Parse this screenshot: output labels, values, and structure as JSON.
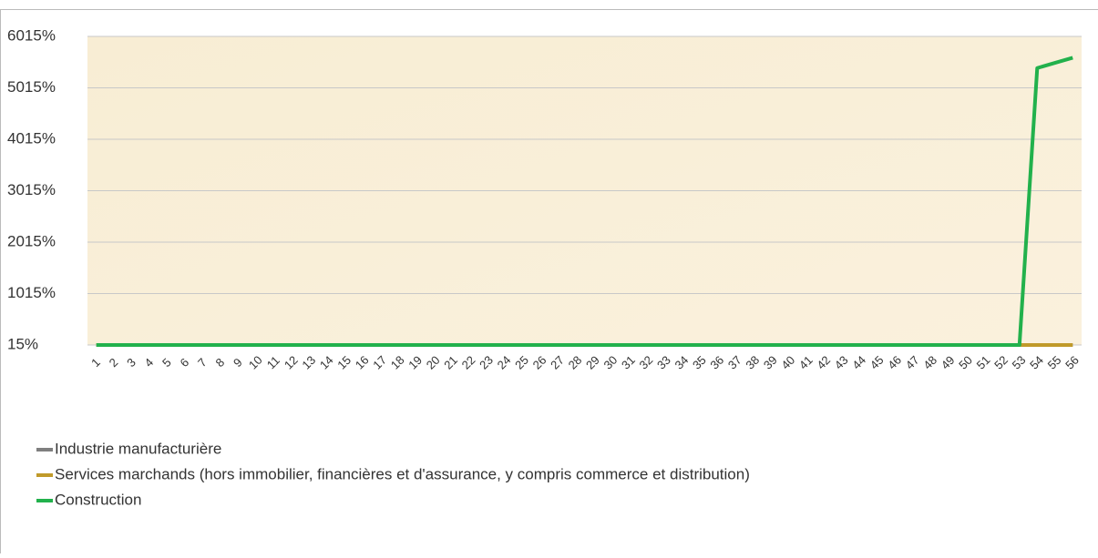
{
  "chart_data": {
    "type": "line",
    "categories": [
      "1",
      "2",
      "3",
      "4",
      "5",
      "6",
      "7",
      "8",
      "9",
      "10",
      "11",
      "12",
      "13",
      "14",
      "15",
      "16",
      "17",
      "18",
      "19",
      "20",
      "21",
      "22",
      "23",
      "24",
      "25",
      "26",
      "27",
      "28",
      "29",
      "30",
      "31",
      "32",
      "33",
      "34",
      "35",
      "36",
      "37",
      "38",
      "39",
      "40",
      "41",
      "42",
      "43",
      "44",
      "45",
      "46",
      "47",
      "48",
      "49",
      "50",
      "51",
      "52",
      "53",
      "54",
      "55",
      "56"
    ],
    "series": [
      {
        "name": "Industrie manufacturière",
        "color": "#7f7f7f",
        "values": [
          15,
          15,
          15,
          15,
          15,
          15,
          15,
          15,
          15,
          15,
          15,
          15,
          15,
          15,
          15,
          15,
          15,
          15,
          15,
          15,
          15,
          15,
          15,
          15,
          15,
          15,
          15,
          15,
          15,
          15,
          15,
          15,
          15,
          15,
          15,
          15,
          15,
          15,
          15,
          15,
          15,
          15,
          15,
          15,
          15,
          15,
          15,
          15,
          15,
          15,
          15,
          15,
          15,
          15,
          15,
          15
        ]
      },
      {
        "name": "Services marchands (hors immobilier, financières et d'assurance, y compris commerce et distribution)",
        "color": "#c09a2a",
        "values": [
          15,
          15,
          15,
          15,
          15,
          15,
          15,
          15,
          15,
          15,
          15,
          15,
          15,
          15,
          15,
          15,
          15,
          15,
          15,
          15,
          15,
          15,
          15,
          15,
          15,
          15,
          15,
          15,
          15,
          15,
          15,
          15,
          15,
          15,
          15,
          15,
          15,
          15,
          15,
          15,
          15,
          15,
          15,
          15,
          15,
          15,
          15,
          15,
          15,
          15,
          15,
          15,
          15,
          15,
          15,
          15
        ]
      },
      {
        "name": "Construction",
        "color": "#22b14c",
        "values": [
          15,
          15,
          15,
          15,
          15,
          15,
          15,
          15,
          15,
          15,
          15,
          15,
          15,
          15,
          15,
          15,
          15,
          15,
          15,
          15,
          15,
          15,
          15,
          15,
          15,
          15,
          15,
          15,
          15,
          15,
          15,
          15,
          15,
          15,
          15,
          15,
          15,
          15,
          15,
          15,
          15,
          15,
          15,
          15,
          15,
          15,
          15,
          15,
          15,
          15,
          15,
          15,
          15,
          5400,
          5500,
          5600
        ]
      }
    ],
    "ylim": [
      15,
      6015
    ],
    "yticks": [
      {
        "value": 15,
        "label": "15%"
      },
      {
        "value": 1015,
        "label": "1015%"
      },
      {
        "value": 2015,
        "label": "2015%"
      },
      {
        "value": 3015,
        "label": "3015%"
      },
      {
        "value": 4015,
        "label": "4015%"
      },
      {
        "value": 5015,
        "label": "5015%"
      },
      {
        "value": 6015,
        "label": "6015%"
      }
    ],
    "grid": true
  }
}
